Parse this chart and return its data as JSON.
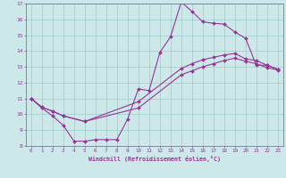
{
  "xlabel": "Windchill (Refroidissement éolien,°C)",
  "bg_color": "#cce8e8",
  "grid_color": "#99cccc",
  "line_color": "#993399",
  "xlim": [
    -0.5,
    23.5
  ],
  "ylim": [
    8,
    17
  ],
  "xticks": [
    0,
    1,
    2,
    3,
    4,
    5,
    6,
    7,
    8,
    9,
    10,
    11,
    12,
    13,
    14,
    15,
    16,
    17,
    18,
    19,
    20,
    21,
    22,
    23
  ],
  "yticks": [
    8,
    9,
    10,
    11,
    12,
    13,
    14,
    15,
    16,
    17
  ],
  "line1_x": [
    0,
    1,
    2,
    3,
    4,
    5,
    6,
    7,
    8,
    9,
    10,
    11,
    12,
    13,
    14,
    15,
    16,
    17,
    18,
    19,
    20,
    21,
    22,
    23
  ],
  "line1_y": [
    11.0,
    10.4,
    9.9,
    9.3,
    8.3,
    8.3,
    8.4,
    8.4,
    8.4,
    9.7,
    11.6,
    11.5,
    13.9,
    14.9,
    17.1,
    16.5,
    15.85,
    15.75,
    15.7,
    15.2,
    14.8,
    13.1,
    13.1,
    12.85
  ],
  "line1_markers_x": [
    0,
    1,
    2,
    3,
    4,
    5,
    6,
    7,
    8,
    9,
    12,
    13,
    14,
    15,
    16,
    17,
    18,
    19,
    20,
    21,
    22,
    23
  ],
  "line1_markers_y": [
    11.0,
    10.4,
    9.9,
    9.3,
    8.3,
    8.3,
    8.4,
    8.4,
    8.4,
    9.7,
    13.9,
    14.9,
    17.1,
    16.5,
    15.85,
    15.75,
    15.7,
    15.2,
    14.8,
    13.1,
    13.1,
    12.85
  ],
  "line2_x": [
    0,
    1,
    2,
    3,
    5,
    10,
    14,
    15,
    16,
    17,
    18,
    19,
    20,
    21,
    22,
    23
  ],
  "line2_y": [
    11.0,
    10.45,
    10.2,
    9.9,
    9.55,
    10.8,
    12.9,
    13.2,
    13.45,
    13.6,
    13.75,
    13.85,
    13.5,
    13.4,
    13.1,
    12.85
  ],
  "line3_x": [
    0,
    1,
    2,
    3,
    5,
    10,
    14,
    15,
    16,
    17,
    18,
    19,
    20,
    21,
    22,
    23
  ],
  "line3_y": [
    11.0,
    10.45,
    10.2,
    9.9,
    9.55,
    10.4,
    12.5,
    12.75,
    13.0,
    13.2,
    13.4,
    13.55,
    13.35,
    13.2,
    12.95,
    12.8
  ]
}
